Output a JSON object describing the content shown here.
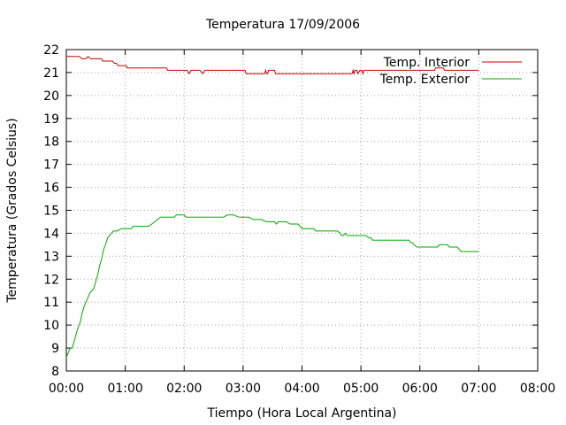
{
  "chart_data": {
    "type": "line",
    "title": "Temperatura 17/09/2006",
    "xlabel": "Tiempo (Hora Local Argentina)",
    "ylabel": "Temperatura (Grados Celsius)",
    "x_unit": "minutes",
    "xlim": [
      0,
      480
    ],
    "ylim": [
      8,
      22
    ],
    "x_ticks": [
      {
        "value": 0,
        "label": "00:00"
      },
      {
        "value": 60,
        "label": "01:00"
      },
      {
        "value": 120,
        "label": "02:00"
      },
      {
        "value": 180,
        "label": "03:00"
      },
      {
        "value": 240,
        "label": "04:00"
      },
      {
        "value": 300,
        "label": "05:00"
      },
      {
        "value": 360,
        "label": "06:00"
      },
      {
        "value": 420,
        "label": "07:00"
      },
      {
        "value": 480,
        "label": "08:00"
      }
    ],
    "y_ticks": [
      {
        "value": 8,
        "label": "8"
      },
      {
        "value": 9,
        "label": "9"
      },
      {
        "value": 10,
        "label": "10"
      },
      {
        "value": 11,
        "label": "11"
      },
      {
        "value": 12,
        "label": "12"
      },
      {
        "value": 13,
        "label": "13"
      },
      {
        "value": 14,
        "label": "14"
      },
      {
        "value": 15,
        "label": "15"
      },
      {
        "value": 16,
        "label": "16"
      },
      {
        "value": 17,
        "label": "17"
      },
      {
        "value": 18,
        "label": "18"
      },
      {
        "value": 19,
        "label": "19"
      },
      {
        "value": 20,
        "label": "20"
      },
      {
        "value": 21,
        "label": "21"
      },
      {
        "value": 22,
        "label": "22"
      }
    ],
    "grid": true,
    "legend_position": "top-right",
    "series": [
      {
        "name": "Temp. Interior",
        "color": "#cc0000",
        "points": [
          [
            0,
            21.7
          ],
          [
            9,
            21.7
          ],
          [
            11,
            21.7
          ],
          [
            13,
            21.7
          ],
          [
            16,
            21.6
          ],
          [
            20,
            21.6
          ],
          [
            22,
            21.7
          ],
          [
            25,
            21.6
          ],
          [
            34,
            21.6
          ],
          [
            36,
            21.6
          ],
          [
            37,
            21.5
          ],
          [
            47,
            21.5
          ],
          [
            49,
            21.4
          ],
          [
            51,
            21.4
          ],
          [
            53,
            21.3
          ],
          [
            61,
            21.3
          ],
          [
            62,
            21.2
          ],
          [
            102,
            21.2
          ],
          [
            103,
            21.1
          ],
          [
            123,
            21.1
          ],
          [
            125,
            20.95
          ],
          [
            127,
            21.1
          ],
          [
            129,
            21.1
          ],
          [
            132,
            21.1
          ],
          [
            134,
            21.1
          ],
          [
            136,
            21.1
          ],
          [
            139,
            20.95
          ],
          [
            141,
            21.1
          ],
          [
            182,
            21.1
          ],
          [
            183,
            20.95
          ],
          [
            202,
            20.95
          ],
          [
            203,
            21.1
          ],
          [
            204,
            20.95
          ],
          [
            205,
            20.95
          ],
          [
            206,
            21.1
          ],
          [
            212,
            21.1
          ],
          [
            213,
            20.95
          ],
          [
            291,
            20.95
          ],
          [
            292,
            21.1
          ],
          [
            293,
            20.95
          ],
          [
            294,
            21.1
          ],
          [
            296,
            21.1
          ],
          [
            297,
            20.95
          ],
          [
            299,
            21.1
          ],
          [
            301,
            21.1
          ],
          [
            302,
            20.95
          ],
          [
            303,
            21.1
          ],
          [
            375,
            21.1
          ],
          [
            376,
            21.2
          ],
          [
            384,
            21.2
          ],
          [
            385,
            21.1
          ],
          [
            413,
            21.1
          ],
          [
            415,
            21.1
          ],
          [
            418,
            21.1
          ],
          [
            420,
            21.1
          ]
        ]
      },
      {
        "name": "Temp. Exterior",
        "color": "#00aa00",
        "points": [
          [
            0,
            8.6
          ],
          [
            2,
            8.8
          ],
          [
            4,
            9.0
          ],
          [
            6,
            9.0
          ],
          [
            8,
            9.3
          ],
          [
            10,
            9.6
          ],
          [
            12,
            9.9
          ],
          [
            14,
            10.1
          ],
          [
            16,
            10.5
          ],
          [
            18,
            10.8
          ],
          [
            20,
            11.0
          ],
          [
            22,
            11.2
          ],
          [
            24,
            11.4
          ],
          [
            26,
            11.5
          ],
          [
            28,
            11.6
          ],
          [
            30,
            11.9
          ],
          [
            32,
            12.2
          ],
          [
            34,
            12.6
          ],
          [
            36,
            12.9
          ],
          [
            38,
            13.3
          ],
          [
            40,
            13.5
          ],
          [
            42,
            13.8
          ],
          [
            44,
            13.9
          ],
          [
            46,
            14.0
          ],
          [
            48,
            14.1
          ],
          [
            52,
            14.1
          ],
          [
            56,
            14.2
          ],
          [
            66,
            14.2
          ],
          [
            68,
            14.3
          ],
          [
            84,
            14.3
          ],
          [
            90,
            14.5
          ],
          [
            93,
            14.6
          ],
          [
            96,
            14.7
          ],
          [
            110,
            14.7
          ],
          [
            112,
            14.8
          ],
          [
            120,
            14.8
          ],
          [
            122,
            14.7
          ],
          [
            140,
            14.7
          ],
          [
            160,
            14.7
          ],
          [
            164,
            14.8
          ],
          [
            170,
            14.8
          ],
          [
            176,
            14.7
          ],
          [
            186,
            14.7
          ],
          [
            190,
            14.6
          ],
          [
            198,
            14.6
          ],
          [
            204,
            14.5
          ],
          [
            212,
            14.5
          ],
          [
            214,
            14.4
          ],
          [
            216,
            14.5
          ],
          [
            224,
            14.5
          ],
          [
            228,
            14.4
          ],
          [
            236,
            14.4
          ],
          [
            238,
            14.3
          ],
          [
            240,
            14.2
          ],
          [
            246,
            14.2
          ],
          [
            252,
            14.2
          ],
          [
            254,
            14.1
          ],
          [
            268,
            14.1
          ],
          [
            270,
            14.1
          ],
          [
            276,
            14.1
          ],
          [
            279,
            14.0
          ],
          [
            280,
            13.9
          ],
          [
            282,
            13.9
          ],
          [
            284,
            14.0
          ],
          [
            286,
            13.9
          ],
          [
            300,
            13.9
          ],
          [
            305,
            13.9
          ],
          [
            308,
            13.8
          ],
          [
            310,
            13.8
          ],
          [
            312,
            13.7
          ],
          [
            330,
            13.7
          ],
          [
            349,
            13.7
          ],
          [
            350,
            13.6
          ],
          [
            352,
            13.6
          ],
          [
            354,
            13.5
          ],
          [
            357,
            13.4
          ],
          [
            378,
            13.4
          ],
          [
            380,
            13.5
          ],
          [
            384,
            13.5
          ],
          [
            386,
            13.5
          ],
          [
            388,
            13.5
          ],
          [
            390,
            13.4
          ],
          [
            398,
            13.4
          ],
          [
            400,
            13.3
          ],
          [
            402,
            13.2
          ],
          [
            416,
            13.2
          ],
          [
            420,
            13.2
          ]
        ]
      }
    ]
  }
}
